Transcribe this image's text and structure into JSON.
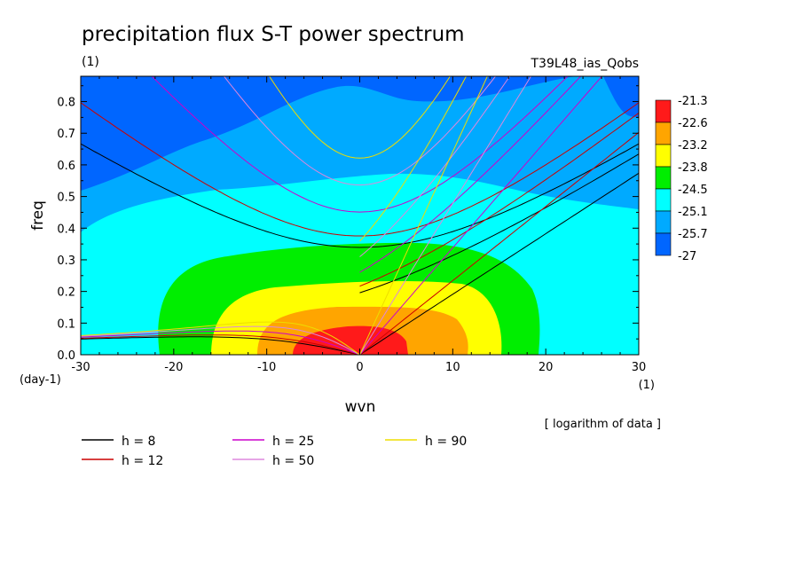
{
  "title": "precipitation flux S-T power spectrum",
  "units_label": "(1)",
  "run_label": "T39L48_ias_Qobs",
  "y_unit": "(day-1)",
  "x_unit": "(1)",
  "note": "[ logarithm of data ]",
  "chart_data": {
    "type": "heatmap",
    "title": "precipitation flux S-T power spectrum",
    "xlabel": "wvn",
    "ylabel": "freq",
    "xlim": [
      -30,
      30
    ],
    "ylim": [
      0,
      0.88
    ],
    "x_ticks": [
      -30,
      -20,
      -10,
      0,
      10,
      20,
      30
    ],
    "y_ticks": [
      0.0,
      0.1,
      0.2,
      0.3,
      0.4,
      0.5,
      0.6,
      0.7,
      0.8
    ],
    "colorbar": {
      "levels": [
        "-21.3",
        "-22.6",
        "-23.2",
        "-23.8",
        "-24.5",
        "-25.1",
        "-25.7",
        "-27"
      ],
      "colors": [
        "#ff1a1a",
        "#ffa500",
        "#ffff00",
        "#00ee00",
        "#00ffff",
        "#00aaff",
        "#0066ff"
      ]
    },
    "series": [
      {
        "name": "h =  8",
        "color": "#000000",
        "h": 8
      },
      {
        "name": "h = 12",
        "color": "#cc0000",
        "h": 12
      },
      {
        "name": "h = 25",
        "color": "#cc00cc",
        "h": 25
      },
      {
        "name": "h = 50",
        "color": "#dd88dd",
        "h": 50
      },
      {
        "name": "h = 90",
        "color": "#eedd00",
        "h": 90
      }
    ],
    "grid": false,
    "legend_position": "bottom"
  }
}
